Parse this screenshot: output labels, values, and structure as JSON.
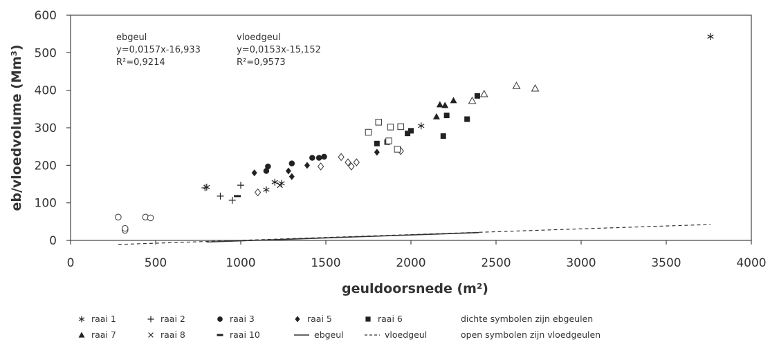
{
  "chart_data": {
    "type": "scatter",
    "xlabel": "geuldoorsnede (m²)",
    "ylabel": "eb/vloedvolume (Mm³)",
    "xlim": [
      0,
      4000
    ],
    "ylim": [
      0,
      600
    ],
    "xticks": [
      0,
      500,
      1000,
      1500,
      2000,
      2500,
      3000,
      3500,
      4000
    ],
    "yticks": [
      0,
      100,
      200,
      300,
      400,
      500,
      600
    ],
    "grid": false,
    "annotations": [
      {
        "id": "ebgeul",
        "lines": [
          "ebgeul",
          "y=0,0157x-16,933",
          "R²=0,9214"
        ]
      },
      {
        "id": "vloedgeul",
        "lines": [
          "vloedgeul",
          "y=0,0153x-15,152",
          "R²=0,9573"
        ]
      }
    ],
    "trendlines": [
      {
        "name": "ebgeul",
        "style": "solid",
        "slope": 0.0157,
        "intercept": -16.933,
        "x_range": [
          800,
          2400
        ]
      },
      {
        "name": "vloedgeul",
        "style": "dashed",
        "slope": 0.0153,
        "intercept": -15.152,
        "x_range": [
          280,
          3760
        ]
      }
    ],
    "series": [
      {
        "name": "raai 1",
        "marker": "asterisk",
        "points": [
          [
            800,
            142
          ],
          [
            1150,
            135
          ],
          [
            1200,
            155
          ],
          [
            1240,
            152
          ],
          [
            2060,
            305
          ],
          [
            3760,
            543
          ]
        ]
      },
      {
        "name": "raai 2",
        "marker": "plus",
        "points": [
          [
            790,
            140
          ],
          [
            880,
            118
          ],
          [
            950,
            107
          ],
          [
            1000,
            147
          ]
        ]
      },
      {
        "name": "raai 3",
        "marker": "filled-circle",
        "points": [
          [
            1150,
            185
          ],
          [
            1160,
            197
          ],
          [
            1300,
            205
          ],
          [
            1420,
            220
          ],
          [
            1460,
            220
          ],
          [
            1490,
            223
          ]
        ]
      },
      {
        "name": "raai 5",
        "marker": "filled-diamond",
        "points": [
          [
            1080,
            180
          ],
          [
            1280,
            185
          ],
          [
            1300,
            170
          ],
          [
            1390,
            200
          ],
          [
            1800,
            235
          ],
          [
            1870,
            263
          ]
        ]
      },
      {
        "name": "raai 6",
        "marker": "filled-square",
        "points": [
          [
            1800,
            258
          ],
          [
            1860,
            262
          ],
          [
            1980,
            285
          ],
          [
            2000,
            292
          ],
          [
            2190,
            278
          ],
          [
            2210,
            333
          ],
          [
            2330,
            323
          ],
          [
            2390,
            385
          ]
        ]
      },
      {
        "name": "raai 7",
        "marker": "filled-triangle",
        "points": [
          [
            2150,
            330
          ],
          [
            2170,
            362
          ],
          [
            2200,
            360
          ],
          [
            2250,
            373
          ]
        ]
      },
      {
        "name": "raai 8",
        "marker": "cross",
        "points": [
          [
            1230,
            147
          ]
        ]
      },
      {
        "name": "raai 10",
        "marker": "dash",
        "points": [
          [
            980,
            118
          ]
        ]
      },
      {
        "name": "",
        "marker": "open-circle",
        "points": [
          [
            280,
            62
          ],
          [
            320,
            27
          ],
          [
            320,
            32
          ],
          [
            440,
            62
          ],
          [
            470,
            60
          ]
        ]
      },
      {
        "name": "",
        "marker": "open-diamond",
        "points": [
          [
            1100,
            128
          ],
          [
            1470,
            197
          ],
          [
            1590,
            222
          ],
          [
            1630,
            208
          ],
          [
            1650,
            197
          ],
          [
            1680,
            208
          ],
          [
            1940,
            238
          ]
        ]
      },
      {
        "name": "",
        "marker": "open-square",
        "points": [
          [
            1750,
            288
          ],
          [
            1810,
            315
          ],
          [
            1870,
            265
          ],
          [
            1880,
            302
          ],
          [
            1920,
            243
          ],
          [
            1940,
            303
          ]
        ]
      },
      {
        "name": "",
        "marker": "open-triangle",
        "points": [
          [
            2360,
            372
          ],
          [
            2430,
            390
          ],
          [
            2620,
            412
          ],
          [
            2730,
            405
          ]
        ]
      }
    ]
  },
  "legend": {
    "items": [
      {
        "label": "raai 1",
        "marker": "asterisk"
      },
      {
        "label": "raai 2",
        "marker": "plus"
      },
      {
        "label": "raai 3",
        "marker": "filled-circle"
      },
      {
        "label": "raai 5",
        "marker": "filled-diamond"
      },
      {
        "label": "raai 6",
        "marker": "filled-square"
      },
      {
        "label": "raai 7",
        "marker": "filled-triangle"
      },
      {
        "label": "raai 8",
        "marker": "cross"
      },
      {
        "label": "raai 10",
        "marker": "dash"
      },
      {
        "label": "ebgeul",
        "marker": "solid-line"
      },
      {
        "label": "vloedgeul",
        "marker": "dashed-line"
      }
    ],
    "notes": [
      "dichte symbolen zijn ebgeulen",
      "open symbolen zijn vloedgeulen"
    ]
  }
}
